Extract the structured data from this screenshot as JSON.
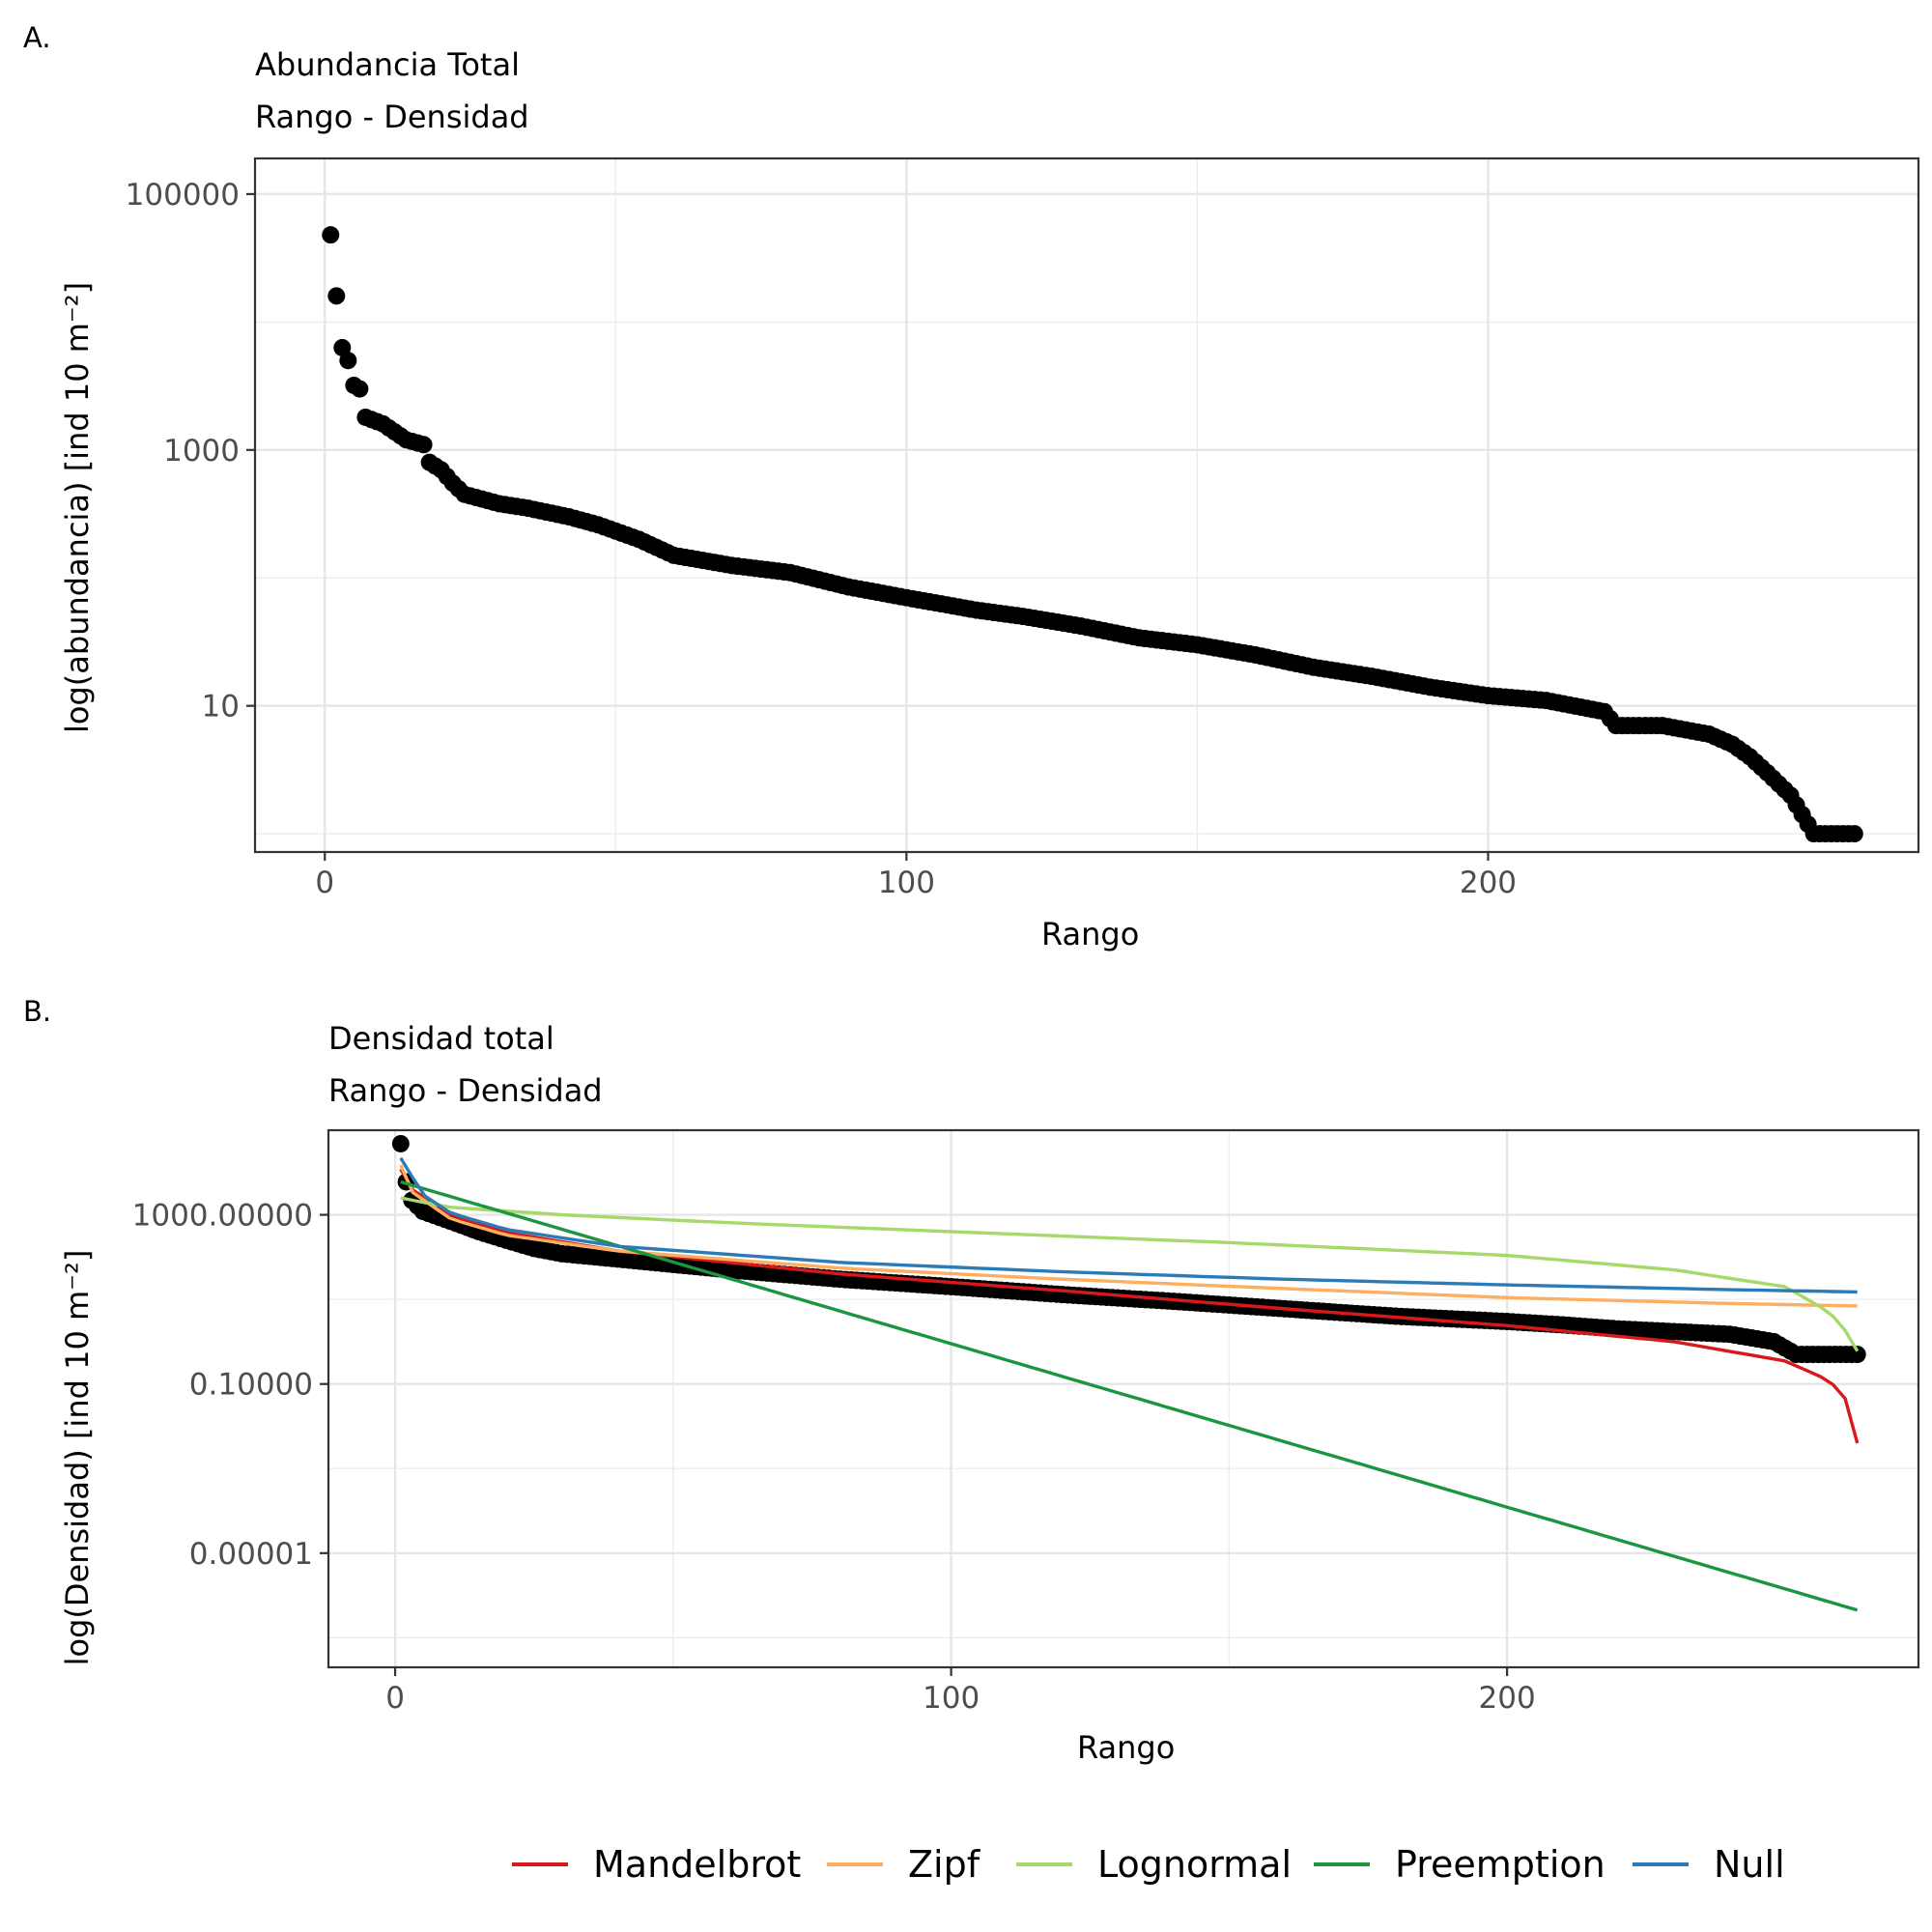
{
  "panels": {
    "a": {
      "tag": "A.",
      "title": "Abundancia Total",
      "subtitle": "Rango - Densidad"
    },
    "b": {
      "tag": "B.",
      "title": "Densidad total",
      "subtitle": "Rango - Densidad"
    }
  },
  "chart_data": [
    {
      "type": "scatter",
      "panel": "A.",
      "title": "Abundancia Total",
      "subtitle": "Rango - Densidad",
      "xlabel": "Rango",
      "ylabel": "log(abundancia) [ind 10 m⁻²]",
      "x_ticks": [
        0,
        100,
        200
      ],
      "y_ticks": [
        10,
        1000,
        100000
      ],
      "y_tick_labels": [
        "10",
        "1000",
        "100000"
      ],
      "y_scale": "log10",
      "xlim": [
        -12,
        274
      ],
      "ylim": [
        0.72,
        190000
      ],
      "grid": true,
      "point_color": "#000000",
      "n_points": 263,
      "rank_abundance_anchors": [
        [
          1,
          48000
        ],
        [
          2,
          16000
        ],
        [
          3,
          6300
        ],
        [
          4,
          5000
        ],
        [
          5,
          3200
        ],
        [
          6,
          3000
        ],
        [
          7,
          1800
        ],
        [
          10,
          1600
        ],
        [
          14,
          1200
        ],
        [
          17,
          1100
        ],
        [
          18,
          800
        ],
        [
          20,
          700
        ],
        [
          22,
          550
        ],
        [
          24,
          450
        ],
        [
          30,
          380
        ],
        [
          35,
          350
        ],
        [
          42,
          300
        ],
        [
          47,
          260
        ],
        [
          54,
          200
        ],
        [
          60,
          150
        ],
        [
          70,
          125
        ],
        [
          80,
          110
        ],
        [
          90,
          85
        ],
        [
          100,
          70
        ],
        [
          112,
          56
        ],
        [
          120,
          50
        ],
        [
          130,
          42
        ],
        [
          140,
          34
        ],
        [
          150,
          30
        ],
        [
          160,
          25
        ],
        [
          170,
          20
        ],
        [
          180,
          17
        ],
        [
          190,
          14
        ],
        [
          200,
          12
        ],
        [
          210,
          11
        ],
        [
          220,
          9
        ],
        [
          222,
          7
        ],
        [
          230,
          7
        ],
        [
          238,
          6
        ],
        [
          242,
          5
        ],
        [
          245,
          4
        ],
        [
          248,
          3
        ],
        [
          252,
          2
        ],
        [
          256,
          1
        ],
        [
          263,
          1
        ]
      ]
    },
    {
      "type": "scatter",
      "panel": "B.",
      "title": "Densidad total",
      "subtitle": "Rango - Densidad",
      "xlabel": "Rango",
      "ylabel": "log(Densidad) [ind 10 m⁻²]",
      "x_ticks": [
        0,
        100,
        200
      ],
      "y_ticks": [
        1e-05,
        0.1,
        1000
      ],
      "y_tick_labels": [
        "0.00001",
        "0.10000",
        "1000.00000"
      ],
      "y_scale": "log10",
      "xlim": [
        -12,
        274
      ],
      "ylim": [
        2e-08,
        100000
      ],
      "grid": true,
      "point_color": "#000000",
      "rank_density_anchors": [
        [
          1,
          48000
        ],
        [
          2,
          6000
        ],
        [
          3,
          2200
        ],
        [
          5,
          1200
        ],
        [
          10,
          700
        ],
        [
          15,
          400
        ],
        [
          20,
          250
        ],
        [
          25,
          160
        ],
        [
          30,
          120
        ],
        [
          40,
          90
        ],
        [
          60,
          50
        ],
        [
          80,
          30
        ],
        [
          100,
          20
        ],
        [
          120,
          13
        ],
        [
          140,
          9
        ],
        [
          160,
          6
        ],
        [
          180,
          4
        ],
        [
          200,
          3
        ],
        [
          210,
          2.5
        ],
        [
          220,
          2
        ],
        [
          240,
          1.5
        ],
        [
          248,
          1
        ],
        [
          252,
          0.5
        ],
        [
          263,
          0.5
        ]
      ],
      "series": [
        {
          "name": "Mandelbrot",
          "color": "#d7191c",
          "x": [
            1,
            3,
            10,
            20,
            40,
            80,
            120,
            160,
            200,
            230,
            250,
            258,
            262,
            263
          ],
          "y": [
            12000,
            4000,
            1000,
            380,
            140,
            40,
            16,
            6,
            2.4,
            1,
            0.35,
            0.12,
            0.03,
            0.004
          ]
        },
        {
          "name": "Zipf",
          "color": "#fdae61",
          "x": [
            1,
            3,
            10,
            20,
            40,
            80,
            120,
            160,
            200,
            240,
            263
          ],
          "y": [
            15000,
            3500,
            800,
            330,
            140,
            55,
            30,
            18,
            11,
            8,
            7
          ]
        },
        {
          "name": "Lognormal",
          "color": "#a6d96a",
          "x": [
            1,
            10,
            30,
            60,
            100,
            150,
            200,
            230,
            250,
            258,
            262,
            263
          ],
          "y": [
            2500,
            1500,
            1000,
            650,
            400,
            220,
            110,
            50,
            20,
            5,
            1.2,
            0.6
          ]
        },
        {
          "name": "Preemption",
          "color": "#1a9641",
          "x": [
            1,
            263
          ],
          "y": [
            6000,
            4.5e-07
          ]
        },
        {
          "name": "Null",
          "color": "#2c7bb6",
          "x": [
            1,
            5,
            10,
            20,
            40,
            80,
            120,
            160,
            200,
            240,
            263
          ],
          "y": [
            22000,
            3000,
            1100,
            450,
            180,
            75,
            45,
            30,
            22,
            17,
            15
          ]
        }
      ],
      "legend": {
        "position": "bottom"
      }
    }
  ]
}
